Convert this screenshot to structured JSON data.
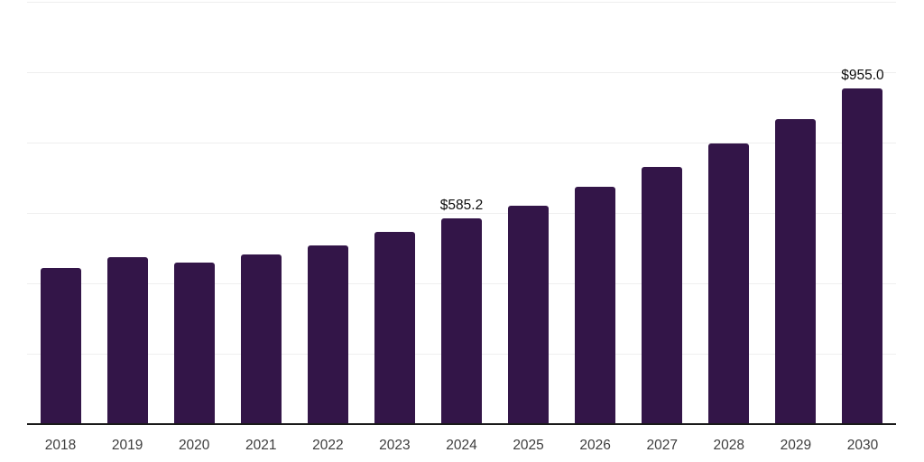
{
  "chart_data": {
    "type": "bar",
    "title": "",
    "xlabel": "",
    "ylabel": "",
    "categories": [
      "2018",
      "2019",
      "2020",
      "2021",
      "2022",
      "2023",
      "2024",
      "2025",
      "2026",
      "2027",
      "2028",
      "2029",
      "2030"
    ],
    "values": [
      442.8,
      473.3,
      458.0,
      480.9,
      508.9,
      547.1,
      585.2,
      620.9,
      674.3,
      730.3,
      796.5,
      867.7,
      955.0
    ],
    "data_labels": [
      null,
      null,
      null,
      null,
      null,
      null,
      "$585.2",
      null,
      null,
      null,
      null,
      null,
      "$955.0"
    ],
    "ylim": [
      0,
      1200
    ],
    "gridline_interval": 200,
    "grid": true,
    "legend": false,
    "colors": {
      "bar": "#331548",
      "axis_line": "#1a1a1a",
      "gridline": "#efefef",
      "tick_label": "#3d3d3d",
      "data_label": "#0d0d0d",
      "background": "#ffffff"
    }
  }
}
